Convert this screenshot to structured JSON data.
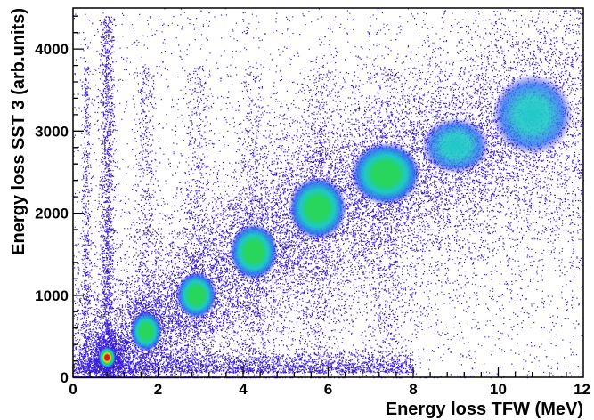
{
  "chart_data": {
    "type": "heatmap",
    "title": "",
    "xlabel": "Energy loss TFW (MeV)",
    "ylabel": "Energy loss SST 3 (arb.units)",
    "xlim": [
      0,
      12
    ],
    "ylim": [
      0,
      4500
    ],
    "x_ticks": [
      0,
      2,
      4,
      6,
      8,
      10,
      12
    ],
    "y_ticks": [
      0,
      1000,
      2000,
      3000,
      4000
    ],
    "grid": false,
    "legend": "none",
    "colors": {
      "low": "#3a1fd6",
      "mid_low": "#2a6cf0",
      "mid": "#1fc8c8",
      "mid_high": "#27d65a",
      "high": "#e7e21a",
      "peak": "#e0171c"
    },
    "clusters": [
      {
        "x": 0.8,
        "y": 240,
        "sx": 0.11,
        "sy": 70,
        "n": 1700,
        "peak": 1.0
      },
      {
        "x": 1.72,
        "y": 560,
        "sx": 0.2,
        "sy": 130,
        "n": 1500,
        "peak": 0.8
      },
      {
        "x": 2.9,
        "y": 1000,
        "sx": 0.25,
        "sy": 150,
        "n": 1300,
        "peak": 0.72
      },
      {
        "x": 4.25,
        "y": 1530,
        "sx": 0.3,
        "sy": 180,
        "n": 1400,
        "peak": 0.7
      },
      {
        "x": 5.75,
        "y": 2060,
        "sx": 0.36,
        "sy": 200,
        "n": 1600,
        "peak": 0.7
      },
      {
        "x": 7.35,
        "y": 2480,
        "sx": 0.43,
        "sy": 200,
        "n": 1800,
        "peak": 0.68
      },
      {
        "x": 9.0,
        "y": 2820,
        "sx": 0.42,
        "sy": 180,
        "n": 1200,
        "peak": 0.55
      },
      {
        "x": 10.8,
        "y": 3200,
        "sx": 0.5,
        "sy": 260,
        "n": 1000,
        "peak": 0.4
      }
    ]
  }
}
